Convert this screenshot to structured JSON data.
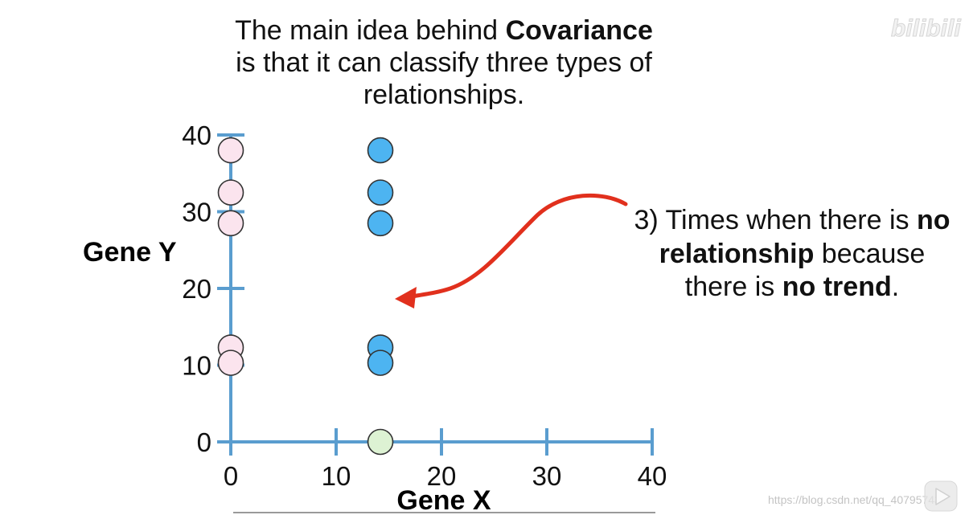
{
  "slide": {
    "title_line1_a": "The main idea behind",
    "title_line1_b": "Covariance",
    "title_line2": "is that it can classify three types of",
    "title_line3": "relationships.",
    "note_line1_a": "3) Times when there is",
    "note_line1_b": "no",
    "note_line2_a": "relationship",
    "note_line2_b": "because",
    "note_line3_a": "there is",
    "note_line3_b": "no trend",
    "note_line3_c": "."
  },
  "colors": {
    "axis": "#5a9dcf",
    "arrow": "#e1301d",
    "outline": "#333333"
  },
  "icons": {
    "annotation_arrow": "curved-arrow-icon",
    "player_overlay": "play-icon"
  },
  "watermark": {
    "logo": "bilibili",
    "url": "https://blog.csdn.net/qq_40795743"
  },
  "chart_data": {
    "type": "scatter",
    "xlabel": "Gene X",
    "ylabel": "Gene Y",
    "xlim": [
      0,
      40
    ],
    "ylim": [
      0,
      40
    ],
    "xticks": [
      0,
      10,
      20,
      30,
      40
    ],
    "yticks": [
      0,
      10,
      20,
      30,
      40
    ],
    "grid": false,
    "series": [
      {
        "color": "#fbe4ee",
        "x": [
          0,
          0,
          0,
          0,
          0
        ],
        "y": [
          38,
          32.5,
          28.5,
          12.3,
          10.3
        ]
      },
      {
        "color": "#4db4f1",
        "x": [
          14.2,
          14.2,
          14.2,
          14.2,
          14.2
        ],
        "y": [
          38,
          32.5,
          28.5,
          12.3,
          10.3
        ]
      },
      {
        "color": "#ddf2d3",
        "x": [
          14.2
        ],
        "y": [
          0
        ]
      }
    ]
  }
}
